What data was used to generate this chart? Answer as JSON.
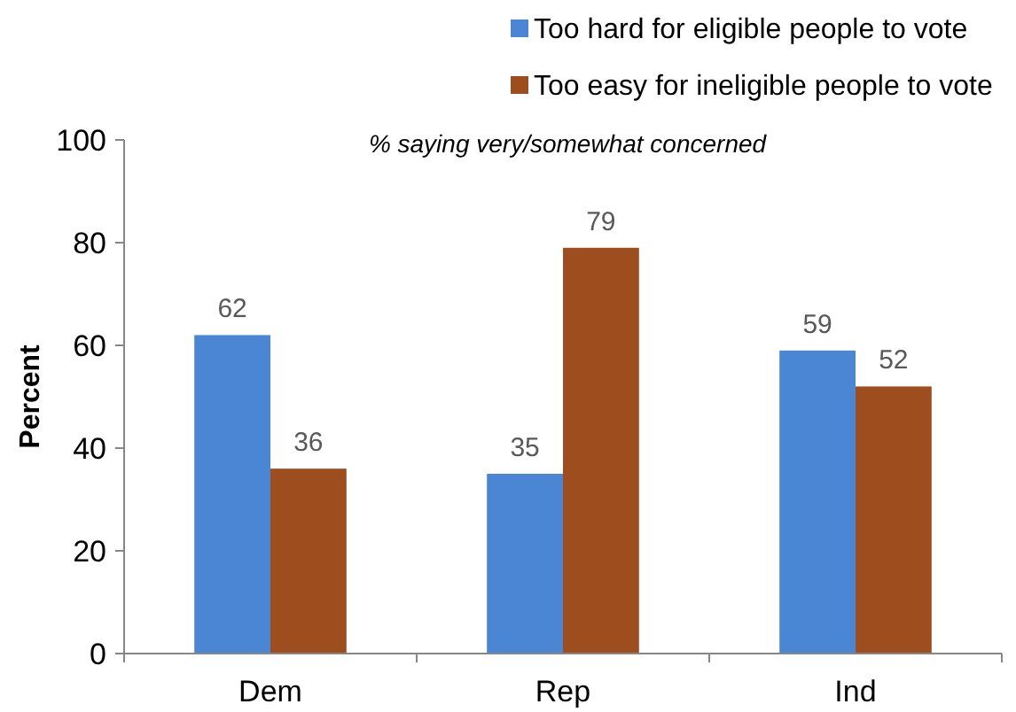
{
  "chart_data": {
    "type": "bar",
    "subtitle": "% saying very/somewhat concerned",
    "ylabel": "Percent",
    "categories": [
      "Dem",
      "Rep",
      "Ind"
    ],
    "series": [
      {
        "name": "Too hard for eligible people to vote",
        "color": "#4a86d4",
        "values": [
          62,
          35,
          59
        ]
      },
      {
        "name": "Too easy for ineligible people to vote",
        "color": "#9e4d1e",
        "values": [
          36,
          79,
          52
        ]
      }
    ],
    "ylim": [
      0,
      100
    ],
    "yticks": [
      0,
      20,
      40,
      60,
      80,
      100
    ],
    "data_labels": true,
    "legend": "top right",
    "grid": false
  }
}
